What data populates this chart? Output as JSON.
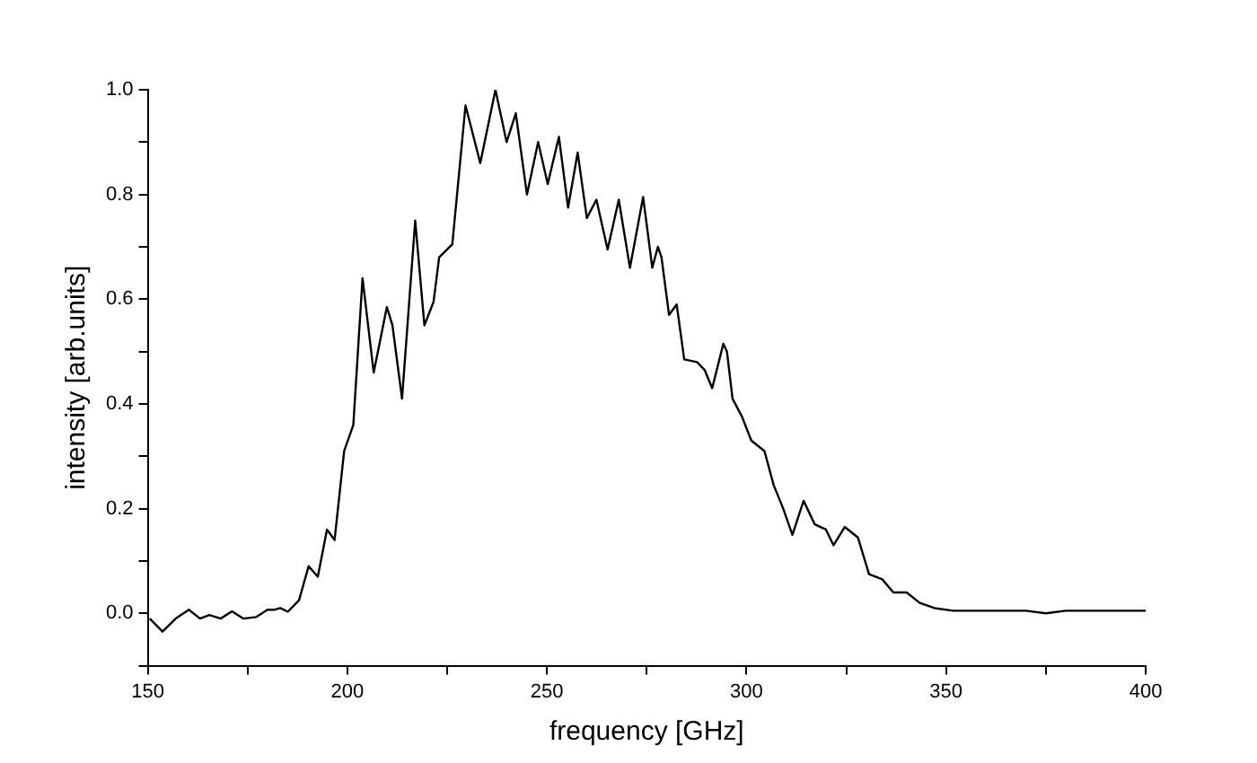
{
  "chart_data": {
    "type": "line",
    "xlabel": "frequency [GHz]",
    "ylabel": "intensity [arb.units]",
    "xlim": [
      150,
      400
    ],
    "xticks": [
      150,
      {
        "value": 175,
        "label": null
      },
      200,
      {
        "value": 225,
        "label": null
      },
      250,
      {
        "value": 275,
        "label": null
      },
      300,
      {
        "value": 325,
        "label": null
      },
      350,
      {
        "value": 375,
        "label": null
      },
      400
    ],
    "ylim": [
      -0.1,
      1.0
    ],
    "yticks": [
      {
        "value": -0.1,
        "label": null
      },
      {
        "value": 0,
        "label": "0.0"
      },
      {
        "value": 0.1,
        "label": null
      },
      0.2,
      {
        "value": 0.3,
        "label": null
      },
      0.4,
      {
        "value": 0.5,
        "label": null
      },
      0.6,
      {
        "value": 0.7,
        "label": null
      },
      0.8,
      {
        "value": 0.9,
        "label": null
      },
      {
        "value": 1,
        "label": "1.0"
      }
    ],
    "grid": false,
    "legend": false,
    "marker": "none",
    "line_style": "solid",
    "series": [
      {
        "color": "#000000",
        "x": [
          150.5,
          153.7,
          157,
          160.3,
          163.1,
          165.4,
          168.3,
          171.1,
          173.9,
          177.2,
          180,
          181.8,
          183.2,
          185.1,
          187.9,
          190.3,
          192.6,
          194.9,
          196.8,
          199.2,
          201.5,
          203.8,
          206.6,
          209.9,
          211.3,
          213.7,
          217,
          219.3,
          221.6,
          223,
          226.3,
          229.6,
          233.3,
          237.1,
          239.9,
          242.2,
          245,
          247.8,
          250.2,
          253,
          255.3,
          257.7,
          260,
          262.4,
          265.2,
          268,
          270.8,
          274.1,
          276.4,
          277.8,
          278.7,
          280.6,
          282.5,
          284.4,
          287.6,
          289.5,
          291.4,
          294.2,
          295.1,
          296.5,
          298.9,
          301.2,
          304.5,
          306.8,
          309.2,
          311.5,
          314.3,
          317.1,
          319.9,
          321.8,
          324.6,
          327.9,
          330.7,
          334,
          336.8,
          340.1,
          343.4,
          347.1,
          351.8,
          359.7,
          370,
          375,
          380,
          390,
          400
        ],
        "values": [
          -0.01,
          -0.035,
          -0.01,
          0.007,
          -0.01,
          -0.003,
          -0.01,
          0.004,
          -0.01,
          -0.007,
          0.007,
          0.007,
          0.01,
          0.003,
          0.025,
          0.09,
          0.07,
          0.16,
          0.14,
          0.31,
          0.36,
          0.64,
          0.46,
          0.585,
          0.55,
          0.41,
          0.75,
          0.55,
          0.595,
          0.68,
          0.705,
          0.97,
          0.86,
          1.0,
          0.9,
          0.955,
          0.8,
          0.9,
          0.82,
          0.91,
          0.775,
          0.88,
          0.755,
          0.79,
          0.695,
          0.79,
          0.66,
          0.795,
          0.66,
          0.7,
          0.68,
          0.57,
          0.59,
          0.485,
          0.48,
          0.465,
          0.43,
          0.515,
          0.5,
          0.41,
          0.375,
          0.33,
          0.31,
          0.245,
          0.2,
          0.15,
          0.215,
          0.17,
          0.16,
          0.13,
          0.165,
          0.145,
          0.075,
          0.065,
          0.04,
          0.04,
          0.02,
          0.01,
          0.005,
          0.005,
          0.005,
          0.0,
          0.005,
          0.005,
          0.005
        ]
      }
    ]
  }
}
